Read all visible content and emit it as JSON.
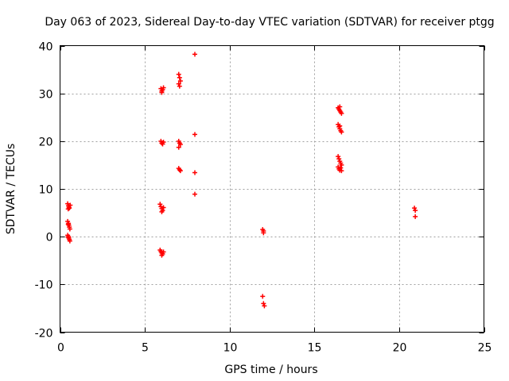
{
  "chart_data": {
    "type": "scatter",
    "title": "Day 063 of 2023, Sidereal Day-to-day VTEC variation (SDTVAR) for receiver ptgg",
    "xlabel": "GPS time / hours",
    "ylabel": "SDTVAR / TECUs",
    "xlim": [
      0,
      25
    ],
    "ylim": [
      -20,
      40
    ],
    "xticks": [
      0,
      5,
      10,
      15,
      20,
      25
    ],
    "yticks": [
      -20,
      -10,
      0,
      10,
      20,
      30,
      40
    ],
    "grid": true,
    "marker": "plus",
    "color": "#ff0000",
    "series": [
      {
        "name": "SDTVAR",
        "points": [
          [
            0.45,
            6.9
          ],
          [
            0.5,
            6.5
          ],
          [
            0.52,
            6.2
          ],
          [
            0.55,
            6.0
          ],
          [
            0.6,
            6.6
          ],
          [
            0.48,
            5.8
          ],
          [
            0.45,
            3.2
          ],
          [
            0.5,
            2.8
          ],
          [
            0.52,
            2.4
          ],
          [
            0.55,
            2.0
          ],
          [
            0.58,
            1.6
          ],
          [
            0.48,
            2.6
          ],
          [
            0.45,
            0.3
          ],
          [
            0.5,
            0.0
          ],
          [
            0.52,
            -0.3
          ],
          [
            0.55,
            -0.6
          ],
          [
            0.58,
            -0.9
          ],
          [
            0.48,
            -0.1
          ],
          [
            5.95,
            31.0
          ],
          [
            6.0,
            30.5
          ],
          [
            6.05,
            30.8
          ],
          [
            6.1,
            31.2
          ],
          [
            6.0,
            30.2
          ],
          [
            5.95,
            20.0
          ],
          [
            6.0,
            19.6
          ],
          [
            6.05,
            19.4
          ],
          [
            6.1,
            19.8
          ],
          [
            5.9,
            6.8
          ],
          [
            5.95,
            6.3
          ],
          [
            6.0,
            5.9
          ],
          [
            6.05,
            5.5
          ],
          [
            6.1,
            6.1
          ],
          [
            6.0,
            5.2
          ],
          [
            5.9,
            -2.8
          ],
          [
            5.95,
            -3.1
          ],
          [
            6.0,
            -3.4
          ],
          [
            6.05,
            -3.6
          ],
          [
            6.1,
            -3.2
          ],
          [
            6.0,
            -3.9
          ],
          [
            7.0,
            34.0
          ],
          [
            7.05,
            33.3
          ],
          [
            7.1,
            32.6
          ],
          [
            7.0,
            32.0
          ],
          [
            7.05,
            31.5
          ],
          [
            7.0,
            20.0
          ],
          [
            7.05,
            19.6
          ],
          [
            7.1,
            19.3
          ],
          [
            7.0,
            18.7
          ],
          [
            7.0,
            14.3
          ],
          [
            7.05,
            14.0
          ],
          [
            7.1,
            13.8
          ],
          [
            7.95,
            38.2
          ],
          [
            7.95,
            21.4
          ],
          [
            7.95,
            13.4
          ],
          [
            7.95,
            8.9
          ],
          [
            11.95,
            1.5
          ],
          [
            12.0,
            1.2
          ],
          [
            12.0,
            0.8
          ],
          [
            11.95,
            -12.5
          ],
          [
            12.0,
            -14.0
          ],
          [
            12.05,
            -14.5
          ],
          [
            16.4,
            27.0
          ],
          [
            16.45,
            26.7
          ],
          [
            16.5,
            26.4
          ],
          [
            16.55,
            26.1
          ],
          [
            16.6,
            25.8
          ],
          [
            16.5,
            27.2
          ],
          [
            16.4,
            23.5
          ],
          [
            16.45,
            23.0
          ],
          [
            16.5,
            22.6
          ],
          [
            16.55,
            22.2
          ],
          [
            16.6,
            21.9
          ],
          [
            16.5,
            23.2
          ],
          [
            16.4,
            16.8
          ],
          [
            16.45,
            16.3
          ],
          [
            16.5,
            15.8
          ],
          [
            16.55,
            15.4
          ],
          [
            16.6,
            15.0
          ],
          [
            16.4,
            14.6
          ],
          [
            16.45,
            14.2
          ],
          [
            16.5,
            13.9
          ],
          [
            16.55,
            14.4
          ],
          [
            16.6,
            13.8
          ],
          [
            20.9,
            6.0
          ],
          [
            20.95,
            5.5
          ],
          [
            20.95,
            4.2
          ]
        ]
      }
    ]
  }
}
